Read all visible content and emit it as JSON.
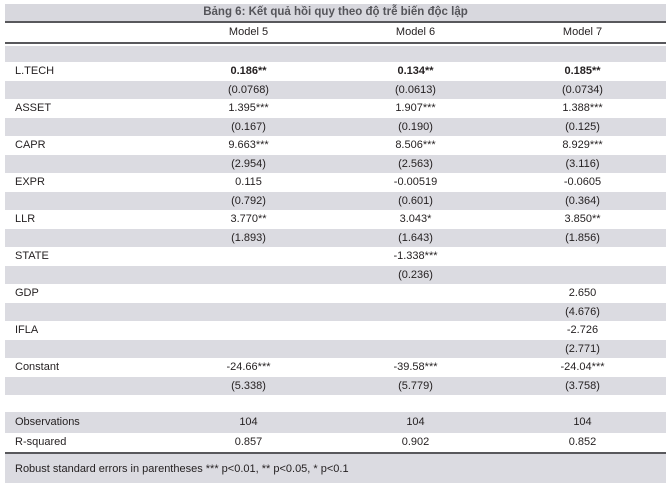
{
  "colors": {
    "stripe": "#dbdbe1",
    "titlebar": "#d8d8de",
    "rule": "#58585c",
    "text": "#231f20",
    "titletext": "#55555a"
  },
  "table": {
    "title": "Bảng 6: Kết quả hồi quy theo độ trễ biến độc lập",
    "columns": [
      "Model 5",
      "Model 6",
      "Model 7"
    ],
    "rows": [
      {
        "label": "L.TECH",
        "bold": true,
        "coef": [
          "0.186**",
          "0.134**",
          "0.185**"
        ],
        "se": [
          "(0.0768)",
          "(0.0613)",
          "(0.0734)"
        ]
      },
      {
        "label": "ASSET",
        "bold": false,
        "coef": [
          "1.395***",
          "1.907***",
          "1.388***"
        ],
        "se": [
          "(0.167)",
          "(0.190)",
          "(0.125)"
        ]
      },
      {
        "label": "CAPR",
        "bold": false,
        "coef": [
          "9.663***",
          "8.506***",
          "8.929***"
        ],
        "se": [
          "(2.954)",
          "(2.563)",
          "(3.116)"
        ]
      },
      {
        "label": "EXPR",
        "bold": false,
        "coef": [
          "0.115",
          "-0.00519",
          "-0.0605"
        ],
        "se": [
          "(0.792)",
          "(0.601)",
          "(0.364)"
        ]
      },
      {
        "label": "LLR",
        "bold": false,
        "coef": [
          "3.770**",
          "3.043*",
          "3.850**"
        ],
        "se": [
          "(1.893)",
          "(1.643)",
          "(1.856)"
        ]
      },
      {
        "label": "STATE",
        "bold": false,
        "coef": [
          "",
          "-1.338***",
          ""
        ],
        "se": [
          "",
          "(0.236)",
          ""
        ]
      },
      {
        "label": "GDP",
        "bold": false,
        "coef": [
          "",
          "",
          "2.650"
        ],
        "se": [
          "",
          "",
          "(4.676)"
        ]
      },
      {
        "label": "IFLA",
        "bold": false,
        "coef": [
          "",
          "",
          "-2.726"
        ],
        "se": [
          "",
          "",
          "(2.771)"
        ]
      },
      {
        "label": "Constant",
        "bold": false,
        "coef": [
          "-24.66***",
          "-39.58***",
          "-24.04***"
        ],
        "se": [
          "(5.338)",
          "(5.779)",
          "(3.758)"
        ]
      }
    ],
    "stats": [
      {
        "label": "Observations",
        "values": [
          "104",
          "104",
          "104"
        ]
      },
      {
        "label": "R-squared",
        "values": [
          "0.857",
          "0.902",
          "0.852"
        ]
      }
    ],
    "footnote": "Robust standard errors in parentheses *** p<0.01, ** p<0.05, * p<0.1"
  }
}
